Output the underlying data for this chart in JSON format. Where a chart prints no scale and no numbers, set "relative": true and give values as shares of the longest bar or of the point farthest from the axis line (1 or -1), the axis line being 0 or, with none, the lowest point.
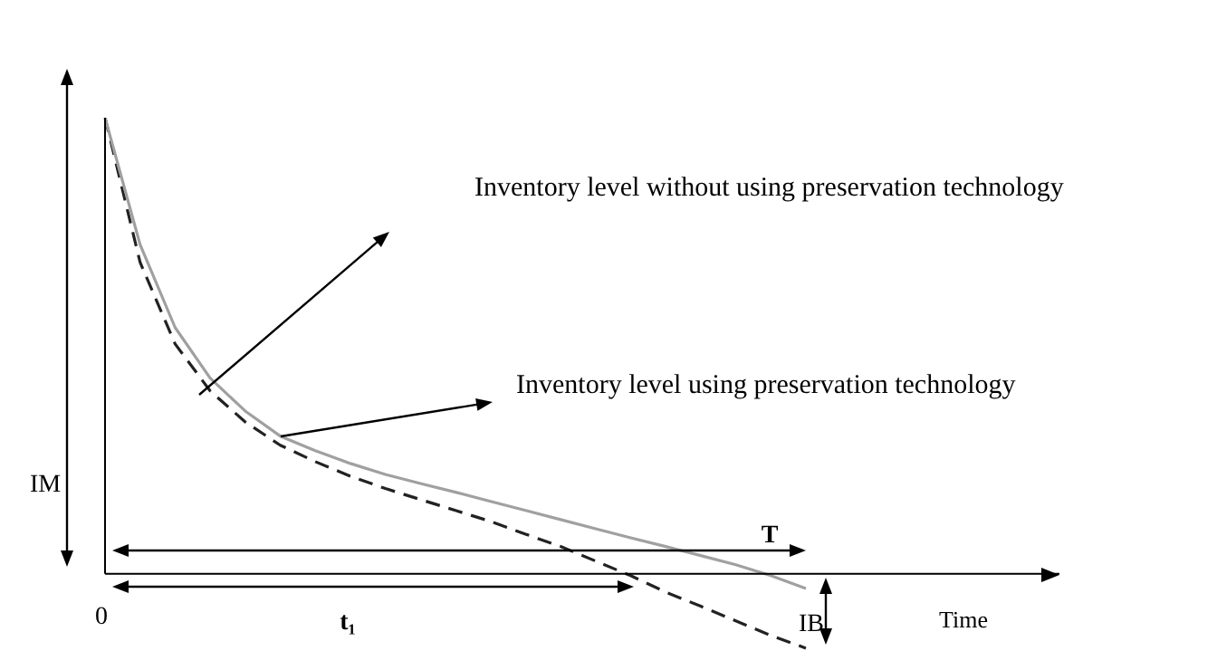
{
  "chart_data": {
    "type": "line",
    "relative": true,
    "categories": [
      null,
      null,
      null,
      null,
      null,
      null,
      null,
      null,
      null,
      null,
      null,
      null,
      null,
      null,
      null,
      null,
      null,
      null,
      null,
      null,
      null
    ],
    "series": [
      {
        "color": "#a0a0a0",
        "line_style": "solid",
        "values": [
          1.0,
          0.722,
          0.54,
          0.429,
          0.357,
          0.302,
          0.27,
          0.242,
          0.218,
          0.198,
          0.179,
          0.159,
          0.139,
          0.119,
          0.099,
          0.079,
          0.06,
          0.04,
          0.02,
          -0.004,
          -0.032
        ]
      },
      {
        "color": "#222222",
        "line_style": "dashed",
        "values": [
          1.0,
          0.683,
          0.504,
          0.401,
          0.333,
          0.282,
          0.246,
          0.214,
          0.187,
          0.163,
          0.139,
          0.115,
          0.087,
          0.06,
          0.028,
          -0.004,
          -0.04,
          -0.071,
          -0.103,
          -0.135,
          -0.163
        ]
      }
    ],
    "annotations": [
      "Inventory level without using preservation technology",
      "Inventory level using preservation technology",
      "IM",
      "T",
      "t₁",
      "IB",
      "0",
      "Time"
    ],
    "legend": false,
    "marker": "none"
  }
}
